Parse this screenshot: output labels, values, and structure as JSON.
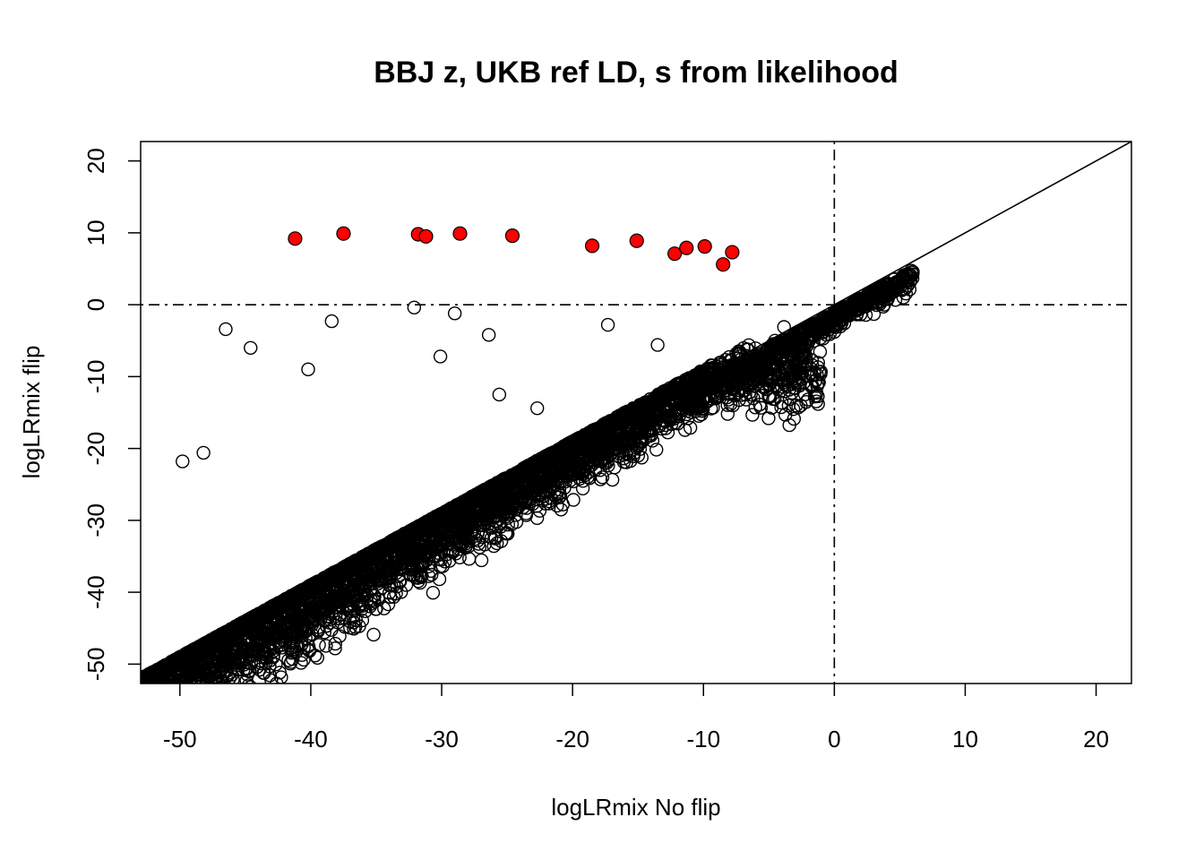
{
  "chart_data": {
    "type": "scatter",
    "title": "BBJ z, UKB ref LD, s from likelihood",
    "xlabel": "logLRmix No flip",
    "ylabel": "logLRmix flip",
    "xlim": [
      -53,
      22.7
    ],
    "ylim": [
      -52.7,
      22.7
    ],
    "x_ticks": [
      -50,
      -40,
      -30,
      -20,
      -10,
      0,
      10,
      20
    ],
    "y_ticks": [
      -50,
      -40,
      -30,
      -20,
      -10,
      0,
      10,
      20
    ],
    "x_tick_labels": [
      "-50",
      "-40",
      "-30",
      "-20",
      "-10",
      "0",
      "10",
      "20"
    ],
    "y_tick_labels": [
      "-50",
      "-40",
      "-30",
      "-20",
      "-10",
      "0",
      "10",
      "20"
    ],
    "grid": false,
    "reference_lines": [
      {
        "kind": "abline",
        "slope": 1,
        "intercept": 0,
        "style": "solid"
      },
      {
        "kind": "hline",
        "y": 0,
        "style": "dotdash"
      },
      {
        "kind": "vline",
        "x": 0,
        "style": "dotdash"
      }
    ],
    "highlight_color": "#ff0000",
    "marker_color": "#000000",
    "highlighted_points": {
      "x": [
        -41.2,
        -37.5,
        -31.8,
        -31.2,
        -28.6,
        -24.6,
        -18.5,
        -15.1,
        -12.2,
        -11.3,
        -9.9,
        -8.5,
        -7.8
      ],
      "y": [
        9.2,
        9.9,
        9.8,
        9.5,
        9.9,
        9.6,
        8.2,
        8.9,
        7.1,
        7.9,
        8.1,
        5.6,
        7.3
      ]
    },
    "outlier_points": {
      "x": [
        -46.5,
        -38.4,
        -32.1,
        -26.4,
        -17.3,
        -4.5,
        -37.3,
        -35.2,
        -49.8,
        -48.2,
        -22.7,
        -40.2,
        -36.4,
        -13.5,
        -25.6,
        -44.6,
        -30.1,
        -29.0
      ],
      "y": [
        -3.4,
        -2.3,
        -0.4,
        -4.2,
        -2.8,
        -8.6,
        -41.2,
        -45.9,
        -21.8,
        -20.6,
        -14.4,
        -9.0,
        -37.5,
        -5.6,
        -12.5,
        -6.0,
        -7.2,
        -1.2
      ]
    },
    "clusters": [
      {
        "name": "",
        "x_range": [
          -53,
          -20
        ],
        "y_center": -11,
        "y_spread": 2.3,
        "slope": 0,
        "n": 1900
      },
      {
        "name": "",
        "x_range": [
          -20,
          -1
        ],
        "y_center": -10,
        "y_spread": 2.4,
        "slope": 0.25,
        "n": 700
      },
      {
        "name": "",
        "x_range": [
          -53,
          6
        ],
        "y_center": 0,
        "y_spread": 1.2,
        "slope": 1,
        "offset": -1,
        "n": 2600
      },
      {
        "name": "",
        "x_range": [
          -53,
          -14
        ],
        "y_center": -17,
        "y_spread": 3.2,
        "slope": 0.65,
        "anchor_x": -20,
        "n": 1300
      },
      {
        "name": "",
        "x_range": [
          -53,
          -24
        ],
        "y_center": -43,
        "y_spread": 5,
        "slope": 0.9,
        "anchor_x": -50,
        "n": 700
      },
      {
        "name": "",
        "x_range": [
          -53,
          -40
        ],
        "y_center": -48,
        "y_spread": 3,
        "slope": 0.4,
        "anchor_x": -53,
        "n": 200
      }
    ]
  }
}
